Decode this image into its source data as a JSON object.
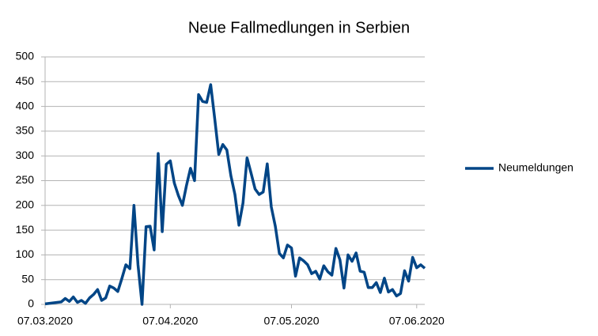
{
  "chart_data": {
    "type": "line",
    "title": "Neue Fallmedlungen in Serbien",
    "x": [
      "07.03.2020",
      "08.03.2020",
      "09.03.2020",
      "10.03.2020",
      "11.03.2020",
      "12.03.2020",
      "13.03.2020",
      "14.03.2020",
      "15.03.2020",
      "16.03.2020",
      "17.03.2020",
      "18.03.2020",
      "19.03.2020",
      "20.03.2020",
      "21.03.2020",
      "22.03.2020",
      "23.03.2020",
      "24.03.2020",
      "25.03.2020",
      "26.03.2020",
      "27.03.2020",
      "28.03.2020",
      "29.03.2020",
      "30.03.2020",
      "31.03.2020",
      "01.04.2020",
      "02.04.2020",
      "03.04.2020",
      "04.04.2020",
      "05.04.2020",
      "06.04.2020",
      "07.04.2020",
      "08.04.2020",
      "09.04.2020",
      "10.04.2020",
      "11.04.2020",
      "12.04.2020",
      "13.04.2020",
      "14.04.2020",
      "15.04.2020",
      "16.04.2020",
      "17.04.2020",
      "18.04.2020",
      "19.04.2020",
      "20.04.2020",
      "21.04.2020",
      "22.04.2020",
      "23.04.2020",
      "24.04.2020",
      "25.04.2020",
      "26.04.2020",
      "27.04.2020",
      "28.04.2020",
      "29.04.2020",
      "30.04.2020",
      "01.05.2020",
      "02.05.2020",
      "03.05.2020",
      "04.05.2020",
      "05.05.2020",
      "06.05.2020",
      "07.05.2020",
      "08.05.2020",
      "09.05.2020",
      "10.05.2020",
      "11.05.2020",
      "12.05.2020",
      "13.05.2020",
      "14.05.2020",
      "15.05.2020",
      "16.05.2020",
      "17.05.2020",
      "18.05.2020",
      "19.05.2020",
      "20.05.2020",
      "21.05.2020",
      "22.05.2020",
      "23.05.2020",
      "24.05.2020",
      "25.05.2020",
      "26.05.2020",
      "27.05.2020",
      "28.05.2020",
      "29.05.2020",
      "30.05.2020",
      "31.05.2020",
      "01.06.2020",
      "02.06.2020",
      "03.06.2020",
      "04.06.2020",
      "05.06.2020",
      "06.06.2020",
      "07.06.2020",
      "08.06.2020",
      "09.06.2020"
    ],
    "series": [
      {
        "name": "Neumeldungen",
        "color": "#004586",
        "values": [
          1,
          2,
          3,
          4,
          5,
          12,
          6,
          15,
          4,
          8,
          2,
          13,
          20,
          30,
          8,
          13,
          37,
          33,
          26,
          52,
          80,
          72,
          200,
          80,
          0,
          157,
          158,
          110,
          305,
          147,
          283,
          290,
          245,
          220,
          200,
          240,
          275,
          250,
          424,
          410,
          408,
          444,
          375,
          303,
          323,
          312,
          260,
          222,
          160,
          205,
          296,
          265,
          233,
          222,
          227,
          284,
          197,
          158,
          103,
          94,
          120,
          114,
          57,
          94,
          88,
          80,
          62,
          67,
          51,
          78,
          66,
          59,
          113,
          90,
          33,
          100,
          87,
          104,
          67,
          65,
          34,
          34,
          44,
          24,
          53,
          25,
          30,
          17,
          22,
          68,
          47,
          95,
          74,
          80,
          73
        ]
      }
    ],
    "xlim": [
      "07.03.2020",
      "09.06.2020"
    ],
    "xticks": [
      "07.03.2020",
      "07.04.2020",
      "07.05.2020",
      "07.06.2020"
    ],
    "ylim": [
      0,
      500
    ],
    "yticks": [
      0,
      50,
      100,
      150,
      200,
      250,
      300,
      350,
      400,
      450,
      500
    ],
    "grid": true,
    "legend": "right"
  }
}
